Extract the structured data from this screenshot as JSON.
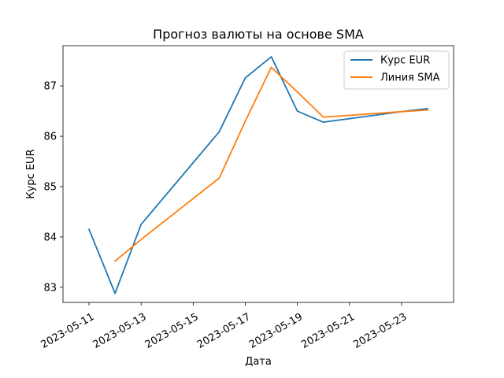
{
  "chart_data": {
    "type": "line",
    "title": "Прогноз валюты на основе SMA",
    "xlabel": "Дата",
    "ylabel": "Курс EUR",
    "xlim": [
      "2023-05-10",
      "2023-05-25"
    ],
    "ylim": [
      82.7,
      87.8
    ],
    "x_ticks": [
      "2023-05-11",
      "2023-05-13",
      "2023-05-15",
      "2023-05-17",
      "2023-05-19",
      "2023-05-21",
      "2023-05-23"
    ],
    "y_ticks": [
      83,
      84,
      85,
      86,
      87
    ],
    "grid": false,
    "legend_position": "top-right",
    "series": [
      {
        "name": "Курс EUR",
        "color": "#1f77b4",
        "x": [
          "2023-05-11",
          "2023-05-12",
          "2023-05-13",
          "2023-05-16",
          "2023-05-17",
          "2023-05-18",
          "2023-05-19",
          "2023-05-20",
          "2023-05-23",
          "2023-05-24"
        ],
        "values": [
          84.15,
          82.88,
          84.25,
          86.09,
          87.16,
          87.58,
          86.5,
          86.28,
          86.49,
          86.55
        ]
      },
      {
        "name": "Линия SMA",
        "color": "#ff7f0e",
        "x": [
          "2023-05-12",
          "2023-05-13",
          "2023-05-16",
          "2023-05-17",
          "2023-05-18",
          "2023-05-19",
          "2023-05-20",
          "2023-05-23",
          "2023-05-24"
        ],
        "values": [
          83.52,
          83.95,
          85.17,
          86.3,
          87.37,
          86.88,
          86.38,
          86.49,
          86.52
        ]
      }
    ]
  }
}
